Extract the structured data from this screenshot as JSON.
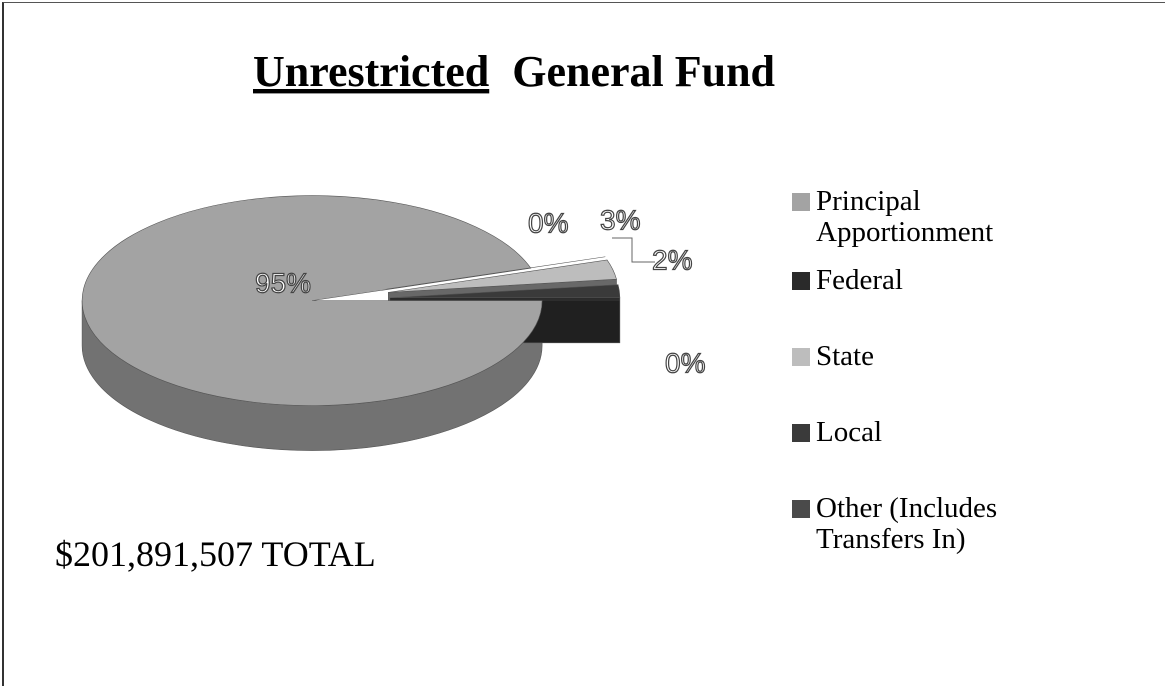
{
  "chart_data": {
    "type": "pie3d",
    "title": [
      "Unrestricted",
      "General Fund"
    ],
    "annotation": "$201,891,507 TOTAL",
    "categories": [
      "Principal Apportionment",
      "Federal",
      "State",
      "Local",
      "Other (Includes Transfers In)"
    ],
    "values": [
      95,
      0,
      3,
      2,
      0
    ],
    "value_labels": [
      "95%",
      "0%",
      "3%",
      "2%",
      "0%"
    ],
    "colors": [
      "#a3a3a3",
      "#2a2a2a",
      "#bdbdbd",
      "#3a3a3a",
      "#4a4a4a"
    ],
    "legend": "right"
  }
}
